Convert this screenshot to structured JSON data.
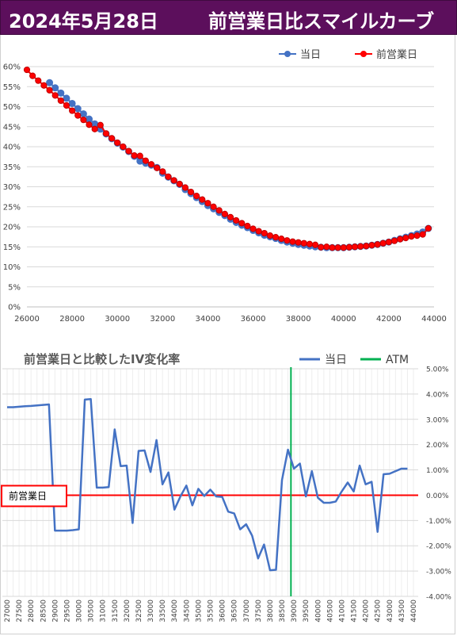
{
  "header": {
    "date": "2024年5月28日",
    "title": "前営業日比スマイルカーブ"
  },
  "colors": {
    "header_bg": "#5c0f5c",
    "today": "#4472c4",
    "prev": "#ff0000",
    "today_line": "#4472c4",
    "atm": "#00b050",
    "baseline": "#ff0000",
    "grid": "#d9d9d9"
  },
  "chart_data": [
    {
      "type": "scatter",
      "title": "",
      "legend": {
        "position": "top-right",
        "entries": [
          "当日",
          "前営業日"
        ]
      },
      "xlim": [
        26000,
        44000
      ],
      "ylim": [
        0,
        0.6
      ],
      "x_ticks": [
        26000,
        28000,
        30000,
        32000,
        34000,
        36000,
        38000,
        40000,
        42000,
        44000
      ],
      "y_ticks": [
        "0%",
        "5%",
        "10%",
        "15%",
        "20%",
        "25%",
        "30%",
        "35%",
        "40%",
        "45%",
        "50%",
        "55%",
        "60%"
      ],
      "grid": "horizontal",
      "series": [
        {
          "name": "当日",
          "color": "#4472c4",
          "x": [
            27000,
            27250,
            27500,
            27750,
            28000,
            28250,
            28500,
            28750,
            29000,
            29250,
            29500,
            29750,
            30000,
            30250,
            30500,
            30750,
            31000,
            31250,
            31500,
            31750,
            32000,
            32250,
            32500,
            32750,
            33000,
            33250,
            33500,
            33750,
            34000,
            34250,
            34500,
            34750,
            35000,
            35250,
            35500,
            35750,
            36000,
            36250,
            36500,
            36750,
            37000,
            37250,
            37500,
            37750,
            38000,
            38250,
            38500,
            38750,
            39000,
            39250,
            39500,
            39750,
            40000,
            40250,
            40500,
            40750,
            41000,
            41250,
            41500,
            41750,
            42000,
            42250,
            42500,
            42750,
            43000,
            43250,
            43500,
            43750
          ],
          "y": [
            0.56,
            0.547,
            0.534,
            0.521,
            0.508,
            0.495,
            0.482,
            0.469,
            0.457,
            0.444,
            0.432,
            0.42,
            0.409,
            0.399,
            0.388,
            0.376,
            0.364,
            0.359,
            0.354,
            0.348,
            0.334,
            0.324,
            0.315,
            0.306,
            0.293,
            0.283,
            0.273,
            0.263,
            0.253,
            0.245,
            0.236,
            0.228,
            0.219,
            0.211,
            0.204,
            0.198,
            0.191,
            0.185,
            0.179,
            0.175,
            0.171,
            0.166,
            0.162,
            0.159,
            0.156,
            0.154,
            0.152,
            0.15,
            0.149,
            0.148,
            0.148,
            0.148,
            0.148,
            0.149,
            0.15,
            0.151,
            0.152,
            0.154,
            0.156,
            0.159,
            0.162,
            0.166,
            0.17,
            0.174,
            0.178,
            0.182,
            0.187,
            0.196
          ]
        },
        {
          "name": "前営業日",
          "color": "#ff0000",
          "x": [
            26000,
            26250,
            26500,
            26750,
            27000,
            27250,
            27500,
            27750,
            28000,
            28250,
            28500,
            28750,
            29000,
            29250,
            29500,
            29750,
            30000,
            30250,
            30500,
            30750,
            31000,
            31250,
            31500,
            31750,
            32000,
            32250,
            32500,
            32750,
            33000,
            33250,
            33500,
            33750,
            34000,
            34250,
            34500,
            34750,
            35000,
            35250,
            35500,
            35750,
            36000,
            36250,
            36500,
            36750,
            37000,
            37250,
            37500,
            37750,
            38000,
            38250,
            38500,
            38750,
            39000,
            39250,
            39500,
            39750,
            40000,
            40250,
            40500,
            40750,
            41000,
            41250,
            41500,
            41750,
            42000,
            42250,
            42500,
            42750,
            43000,
            43250,
            43500,
            43750
          ],
          "y": [
            0.592,
            0.577,
            0.565,
            0.553,
            0.541,
            0.528,
            0.515,
            0.503,
            0.49,
            0.478,
            0.467,
            0.455,
            0.444,
            0.454,
            0.433,
            0.421,
            0.41,
            0.4,
            0.389,
            0.378,
            0.377,
            0.365,
            0.356,
            0.347,
            0.338,
            0.325,
            0.316,
            0.307,
            0.298,
            0.287,
            0.277,
            0.268,
            0.259,
            0.25,
            0.241,
            0.232,
            0.224,
            0.216,
            0.209,
            0.202,
            0.195,
            0.189,
            0.184,
            0.178,
            0.174,
            0.17,
            0.166,
            0.163,
            0.161,
            0.159,
            0.157,
            0.155,
            0.149,
            0.15,
            0.148,
            0.148,
            0.148,
            0.149,
            0.15,
            0.151,
            0.152,
            0.154,
            0.156,
            0.159,
            0.162,
            0.165,
            0.169,
            0.172,
            0.176,
            0.178,
            0.181,
            0.196
          ]
        }
      ]
    },
    {
      "type": "line",
      "title": "前営業日と比較したIV変化率",
      "legend": {
        "position": "top-right",
        "entries": [
          "当日",
          "ATM"
        ]
      },
      "ylim": [
        -0.04,
        0.05
      ],
      "y_ticks": [
        "-4.00%",
        "-3.00%",
        "-2.00%",
        "-1.00%",
        "0.00%",
        "1.00%",
        "2.00%",
        "3.00%",
        "4.00%",
        "5.00%"
      ],
      "x_ticks": [
        27000,
        27250,
        27500,
        27750,
        28000,
        28250,
        28500,
        28750,
        29000,
        29250,
        29500,
        29750,
        30000,
        30250,
        30500,
        30750,
        31000,
        31250,
        31500,
        31750,
        32000,
        32250,
        32500,
        32750,
        33000,
        33250,
        33500,
        33750,
        34000,
        34250,
        34500,
        34750,
        35000,
        35250,
        35500,
        35750,
        36000,
        36250,
        36500,
        36750,
        37000,
        37250,
        37500,
        37750,
        38000,
        38250,
        38500,
        38750,
        39000,
        39250,
        39500,
        39750,
        40000,
        40250,
        40500,
        40750,
        41000,
        41250,
        41500,
        41750,
        42000,
        42250,
        42500,
        42750,
        43000,
        43250,
        43500,
        43750,
        44000
      ],
      "x_tick_labels": [
        "27000",
        "27500",
        "28000",
        "28500",
        "29000",
        "29500",
        "30000",
        "30500",
        "31000",
        "31500",
        "32000",
        "32500",
        "33000",
        "33500",
        "34000",
        "34500",
        "35000",
        "35500",
        "36000",
        "36500",
        "37000",
        "37500",
        "38000",
        "38500",
        "39000",
        "39500",
        "40000",
        "40500",
        "41000",
        "41500",
        "42000",
        "42500",
        "43000",
        "43500",
        "44000"
      ],
      "atm_x": 38875,
      "baseline_label": "前営業日",
      "series": [
        {
          "name": "当日",
          "color": "#4472c4",
          "x": [
            27000,
            27250,
            27500,
            27750,
            28000,
            28250,
            28500,
            28750,
            29000,
            29250,
            29500,
            29750,
            30000,
            30250,
            30500,
            30750,
            31000,
            31250,
            31500,
            31750,
            32000,
            32250,
            32500,
            32750,
            33000,
            33250,
            33500,
            33750,
            34000,
            34250,
            34500,
            34750,
            35000,
            35250,
            35500,
            35750,
            36000,
            36250,
            36500,
            36750,
            37000,
            37250,
            37500,
            37750,
            38000,
            38250,
            38500,
            38750,
            39000,
            39250,
            39500,
            39750,
            40000,
            40250,
            40500,
            40750,
            41000,
            41250,
            41500,
            41750,
            42000,
            42250,
            42500,
            42750,
            43000,
            43250,
            43500,
            43750
          ],
          "y": [
            0.0348,
            0.0348,
            0.035,
            0.0352,
            0.0353,
            0.0355,
            0.0357,
            0.0359,
            -0.014,
            -0.014,
            -0.014,
            -0.0138,
            -0.0135,
            0.0378,
            0.038,
            0.003,
            0.003,
            0.0032,
            0.026,
            0.0115,
            0.0117,
            -0.011,
            0.0175,
            0.0177,
            0.0092,
            0.0218,
            0.0043,
            0.009,
            -0.0057,
            -0.0005,
            0.0038,
            -0.004,
            0.0025,
            -0.0003,
            0.0022,
            -0.0005,
            -0.0007,
            -0.0065,
            -0.0072,
            -0.0135,
            -0.0115,
            -0.016,
            -0.025,
            -0.0195,
            -0.0297,
            -0.0295,
            0.006,
            0.018,
            0.0105,
            0.0125,
            -0.0005,
            0.0095,
            -0.001,
            -0.003,
            -0.003,
            -0.0025,
            0.0015,
            0.005,
            0.0015,
            0.0117,
            0.0043,
            0.0053,
            -0.0145,
            0.0083,
            0.0085,
            0.0095,
            0.0105,
            0.0105
          ]
        }
      ]
    }
  ]
}
